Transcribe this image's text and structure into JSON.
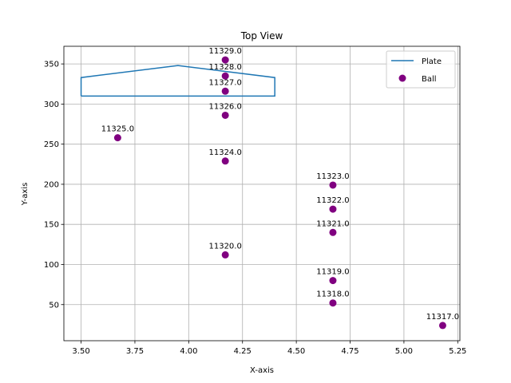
{
  "chart_data": {
    "type": "scatter",
    "title": "Top View",
    "xlabel": "X-axis",
    "ylabel": "Y-axis",
    "xlim": [
      3.42,
      5.26
    ],
    "ylim": [
      5,
      372
    ],
    "xticks": [
      3.5,
      3.75,
      4.0,
      4.25,
      4.5,
      4.75,
      5.0,
      5.25
    ],
    "xtick_labels": [
      "3.50",
      "3.75",
      "4.00",
      "4.25",
      "4.50",
      "4.75",
      "5.00",
      "5.25"
    ],
    "yticks": [
      50,
      100,
      150,
      200,
      250,
      300,
      350
    ],
    "ytick_labels": [
      "50",
      "100",
      "150",
      "200",
      "250",
      "300",
      "350"
    ],
    "grid": true,
    "legend": {
      "placement": "top-right",
      "entries": [
        "Plate",
        "Ball"
      ]
    },
    "series": [
      {
        "name": "Plate",
        "kind": "line",
        "color": "#1f77b4",
        "x": [
          3.5,
          3.5,
          3.95,
          4.4,
          4.4,
          3.5
        ],
        "y": [
          310,
          333,
          348,
          333,
          310,
          310
        ]
      },
      {
        "name": "Ball",
        "kind": "scatter",
        "color": "#800080",
        "x": [
          4.17,
          4.17,
          4.17,
          4.17,
          3.67,
          4.17,
          4.67,
          4.67,
          4.67,
          4.17,
          4.67,
          4.67,
          5.18
        ],
        "y": [
          355,
          335,
          316,
          286,
          258,
          229,
          199,
          169,
          140,
          112,
          80,
          52,
          24
        ],
        "labels": [
          "11329.0",
          "11328.0",
          "11327.0",
          "11326.0",
          "11325.0",
          "11324.0",
          "11323.0",
          "11322.0",
          "11321.0",
          "11320.0",
          "11319.0",
          "11318.0",
          "11317.0"
        ]
      }
    ]
  }
}
